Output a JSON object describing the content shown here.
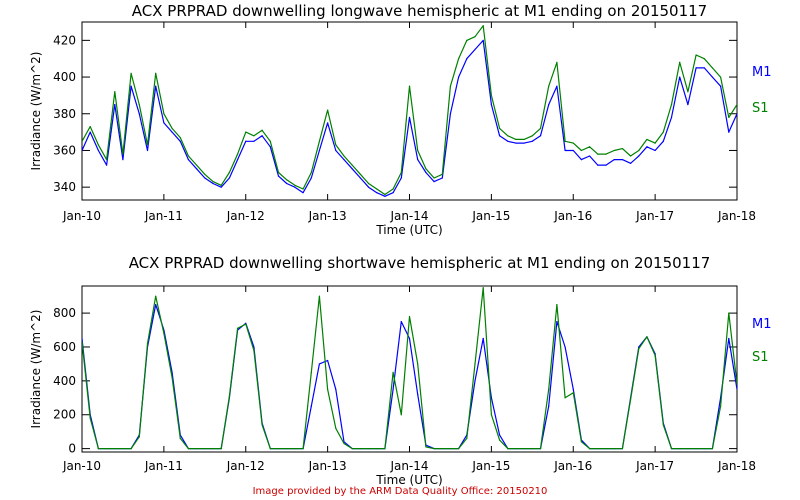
{
  "colors": {
    "m1": "#0000ff",
    "s1": "#008000",
    "axis": "#000000",
    "footer": "#cc0000"
  },
  "footer": "Image provided by the ARM Data Quality Office: 20150210",
  "chart_data": [
    {
      "type": "line",
      "title": "ACX PRPRAD downwelling longwave hemispheric at M1 ending on 20150117",
      "xlabel": "Time (UTC)",
      "ylabel": "Irradiance (W/m^2)",
      "xlim": [
        0,
        8
      ],
      "ylim": [
        333,
        430
      ],
      "x_tick_values": [
        0,
        1,
        2,
        3,
        4,
        5,
        6,
        7,
        8
      ],
      "x_tick_labels": [
        "Jan-10",
        "Jan-11",
        "Jan-12",
        "Jan-13",
        "Jan-14",
        "Jan-15",
        "Jan-16",
        "Jan-17",
        "Jan-18"
      ],
      "y_tick_values": [
        340,
        360,
        380,
        400,
        420
      ],
      "y_tick_labels": [
        "340",
        "360",
        "380",
        "400",
        "420"
      ],
      "series": [
        {
          "name": "M1",
          "x": [
            0.0,
            0.1,
            0.2,
            0.3,
            0.4,
            0.5,
            0.6,
            0.7,
            0.8,
            0.9,
            1.0,
            1.1,
            1.2,
            1.3,
            1.4,
            1.5,
            1.6,
            1.7,
            1.8,
            1.9,
            2.0,
            2.1,
            2.2,
            2.3,
            2.4,
            2.5,
            2.6,
            2.7,
            2.8,
            2.9,
            3.0,
            3.1,
            3.2,
            3.3,
            3.4,
            3.5,
            3.6,
            3.7,
            3.8,
            3.9,
            4.0,
            4.1,
            4.2,
            4.3,
            4.4,
            4.5,
            4.6,
            4.7,
            4.8,
            4.9,
            5.0,
            5.1,
            5.2,
            5.3,
            5.4,
            5.5,
            5.6,
            5.7,
            5.8,
            5.9,
            6.0,
            6.1,
            6.2,
            6.3,
            6.4,
            6.5,
            6.6,
            6.7,
            6.8,
            6.9,
            7.0,
            7.1,
            7.2,
            7.3,
            7.4,
            7.5,
            7.6,
            7.7,
            7.8,
            7.9,
            8.0
          ],
          "values": [
            360,
            370,
            360,
            352,
            385,
            355,
            395,
            380,
            360,
            395,
            375,
            370,
            365,
            355,
            350,
            345,
            342,
            340,
            345,
            355,
            365,
            365,
            368,
            362,
            346,
            342,
            340,
            337,
            345,
            360,
            375,
            360,
            355,
            350,
            345,
            340,
            337,
            335,
            337,
            345,
            378,
            355,
            348,
            343,
            345,
            380,
            400,
            410,
            415,
            420,
            385,
            368,
            365,
            364,
            364,
            365,
            368,
            385,
            395,
            360,
            360,
            355,
            357,
            352,
            352,
            355,
            355,
            353,
            357,
            362,
            360,
            365,
            378,
            400,
            385,
            405,
            405,
            400,
            395,
            370,
            380
          ]
        },
        {
          "name": "S1",
          "x": [
            0.0,
            0.1,
            0.2,
            0.3,
            0.4,
            0.5,
            0.6,
            0.7,
            0.8,
            0.9,
            1.0,
            1.1,
            1.2,
            1.3,
            1.4,
            1.5,
            1.6,
            1.7,
            1.8,
            1.9,
            2.0,
            2.1,
            2.2,
            2.3,
            2.4,
            2.5,
            2.6,
            2.7,
            2.8,
            2.9,
            3.0,
            3.1,
            3.2,
            3.3,
            3.4,
            3.5,
            3.6,
            3.7,
            3.8,
            3.9,
            4.0,
            4.1,
            4.2,
            4.3,
            4.4,
            4.5,
            4.6,
            4.7,
            4.8,
            4.9,
            5.0,
            5.1,
            5.2,
            5.3,
            5.4,
            5.5,
            5.6,
            5.7,
            5.8,
            5.9,
            6.0,
            6.1,
            6.2,
            6.3,
            6.4,
            6.5,
            6.6,
            6.7,
            6.8,
            6.9,
            7.0,
            7.1,
            7.2,
            7.3,
            7.4,
            7.5,
            7.6,
            7.7,
            7.8,
            7.9,
            8.0
          ],
          "values": [
            365,
            373,
            363,
            355,
            392,
            358,
            402,
            385,
            363,
            402,
            380,
            372,
            367,
            357,
            352,
            347,
            343,
            341,
            348,
            358,
            370,
            368,
            371,
            365,
            348,
            344,
            341,
            339,
            348,
            365,
            382,
            363,
            357,
            352,
            347,
            342,
            339,
            336,
            339,
            348,
            395,
            360,
            350,
            345,
            347,
            395,
            410,
            420,
            422,
            428,
            390,
            372,
            368,
            366,
            366,
            368,
            372,
            395,
            408,
            365,
            364,
            360,
            362,
            358,
            358,
            360,
            361,
            357,
            360,
            366,
            364,
            370,
            385,
            408,
            392,
            412,
            410,
            405,
            400,
            378,
            385
          ]
        }
      ]
    },
    {
      "type": "line",
      "title": "ACX PRPRAD downwelling shortwave hemispheric at M1 ending on 20150117",
      "xlabel": "Time (UTC)",
      "ylabel": "Irradiance (W/m^2)",
      "xlim": [
        0,
        8
      ],
      "ylim": [
        -20,
        960
      ],
      "x_tick_values": [
        0,
        1,
        2,
        3,
        4,
        5,
        6,
        7,
        8
      ],
      "x_tick_labels": [
        "Jan-10",
        "Jan-11",
        "Jan-12",
        "Jan-13",
        "Jan-14",
        "Jan-15",
        "Jan-16",
        "Jan-17",
        "Jan-18"
      ],
      "y_tick_values": [
        0,
        200,
        400,
        600,
        800
      ],
      "y_tick_labels": [
        "0",
        "200",
        "400",
        "600",
        "800"
      ],
      "series": [
        {
          "name": "M1",
          "x": [
            0.0,
            0.1,
            0.2,
            0.3,
            0.4,
            0.5,
            0.6,
            0.7,
            0.8,
            0.9,
            1.0,
            1.1,
            1.2,
            1.3,
            1.4,
            1.5,
            1.6,
            1.7,
            1.8,
            1.9,
            2.0,
            2.1,
            2.2,
            2.3,
            2.4,
            2.5,
            2.6,
            2.7,
            2.8,
            2.9,
            3.0,
            3.1,
            3.2,
            3.3,
            3.4,
            3.5,
            3.6,
            3.7,
            3.8,
            3.9,
            4.0,
            4.1,
            4.2,
            4.3,
            4.4,
            4.5,
            4.6,
            4.7,
            4.8,
            4.9,
            5.0,
            5.1,
            5.2,
            5.3,
            5.4,
            5.5,
            5.6,
            5.7,
            5.8,
            5.9,
            6.0,
            6.1,
            6.2,
            6.3,
            6.4,
            6.5,
            6.6,
            6.7,
            6.8,
            6.9,
            7.0,
            7.1,
            7.2,
            7.3,
            7.4,
            7.5,
            7.6,
            7.7,
            7.8,
            7.9,
            8.0
          ],
          "values": [
            650,
            200,
            0,
            0,
            0,
            0,
            0,
            80,
            600,
            850,
            700,
            450,
            80,
            0,
            0,
            0,
            0,
            0,
            300,
            700,
            740,
            600,
            150,
            0,
            0,
            0,
            0,
            0,
            250,
            500,
            520,
            350,
            40,
            0,
            0,
            0,
            0,
            0,
            350,
            750,
            650,
            320,
            20,
            0,
            0,
            0,
            0,
            80,
            400,
            650,
            300,
            80,
            0,
            0,
            0,
            0,
            0,
            250,
            750,
            600,
            350,
            50,
            0,
            0,
            0,
            0,
            0,
            300,
            600,
            660,
            560,
            150,
            0,
            0,
            0,
            0,
            0,
            0,
            300,
            650,
            350
          ]
        },
        {
          "name": "S1",
          "x": [
            0.0,
            0.1,
            0.2,
            0.3,
            0.4,
            0.5,
            0.6,
            0.7,
            0.8,
            0.9,
            1.0,
            1.1,
            1.2,
            1.3,
            1.4,
            1.5,
            1.6,
            1.7,
            1.8,
            1.9,
            2.0,
            2.1,
            2.2,
            2.3,
            2.4,
            2.5,
            2.6,
            2.7,
            2.8,
            2.9,
            3.0,
            3.1,
            3.2,
            3.3,
            3.4,
            3.5,
            3.6,
            3.7,
            3.8,
            3.9,
            4.0,
            4.1,
            4.2,
            4.3,
            4.4,
            4.5,
            4.6,
            4.7,
            4.8,
            4.9,
            5.0,
            5.1,
            5.2,
            5.3,
            5.4,
            5.5,
            5.6,
            5.7,
            5.8,
            5.9,
            6.0,
            6.1,
            6.2,
            6.3,
            6.4,
            6.5,
            6.6,
            6.7,
            6.8,
            6.9,
            7.0,
            7.1,
            7.2,
            7.3,
            7.4,
            7.5,
            7.6,
            7.7,
            7.8,
            7.9,
            8.0
          ],
          "values": [
            630,
            180,
            0,
            0,
            0,
            0,
            0,
            70,
            620,
            900,
            680,
            420,
            60,
            0,
            0,
            0,
            0,
            0,
            310,
            710,
            735,
            580,
            140,
            0,
            0,
            0,
            0,
            0,
            450,
            900,
            350,
            120,
            30,
            0,
            0,
            0,
            0,
            0,
            450,
            200,
            780,
            500,
            10,
            0,
            0,
            0,
            0,
            60,
            500,
            950,
            200,
            50,
            0,
            0,
            0,
            0,
            0,
            350,
            850,
            300,
            330,
            40,
            0,
            0,
            0,
            0,
            0,
            290,
            590,
            660,
            550,
            140,
            0,
            0,
            0,
            0,
            0,
            0,
            250,
            800,
            380
          ]
        }
      ]
    }
  ]
}
